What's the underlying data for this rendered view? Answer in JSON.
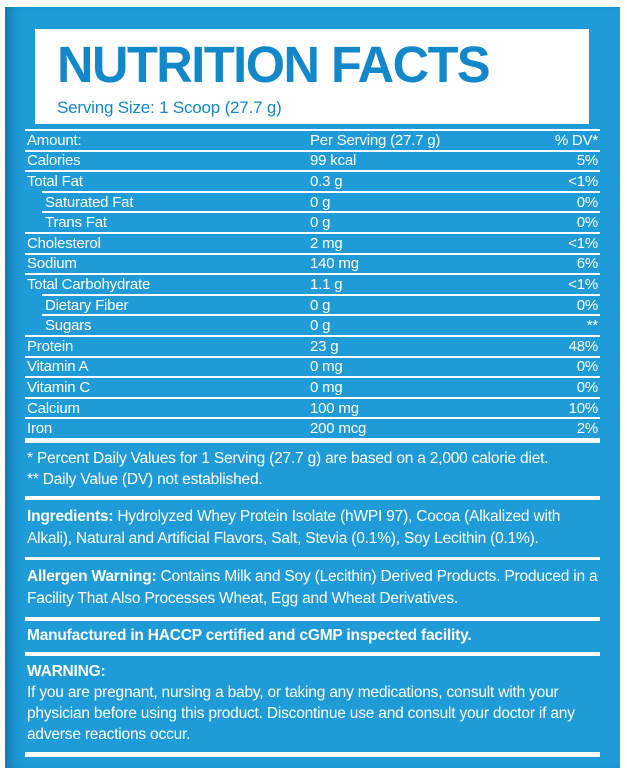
{
  "header": {
    "title": "NUTRITION FACTS",
    "serving_size": "Serving Size: 1 Scoop (27.7 g)"
  },
  "table": {
    "header_row": {
      "label": "Amount:",
      "value": "Per Serving (27.7 g)",
      "dv": "% DV*"
    },
    "rows": [
      {
        "label": "Calories",
        "value": "99 kcal",
        "dv": "5%",
        "indent": false
      },
      {
        "label": "Total Fat",
        "value": "0.3 g",
        "dv": "<1%",
        "indent": false
      },
      {
        "label": "Saturated Fat",
        "value": "0 g",
        "dv": "0%",
        "indent": true
      },
      {
        "label": "Trans Fat",
        "value": "0 g",
        "dv": "0%",
        "indent": true
      },
      {
        "label": "Cholesterol",
        "value": "2 mg",
        "dv": "<1%",
        "indent": false
      },
      {
        "label": "Sodium",
        "value": "140 mg",
        "dv": "6%",
        "indent": false
      },
      {
        "label": "Total Carbohydrate",
        "value": "1.1 g",
        "dv": "<1%",
        "indent": false
      },
      {
        "label": "Dietary Fiber",
        "value": "0 g",
        "dv": "0%",
        "indent": true
      },
      {
        "label": "Sugars",
        "value": "0 g",
        "dv": "**",
        "indent": true
      },
      {
        "label": "Protein",
        "value": "23 g",
        "dv": "48%",
        "indent": false
      },
      {
        "label": "Vitamin A",
        "value": "0 mg",
        "dv": "0%",
        "indent": false
      },
      {
        "label": "Vitamin C",
        "value": "0 mg",
        "dv": "0%",
        "indent": false
      },
      {
        "label": "Calcium",
        "value": "100 mg",
        "dv": "10%",
        "indent": false
      },
      {
        "label": "Iron",
        "value": "200 mcg",
        "dv": "2%",
        "indent": false
      }
    ]
  },
  "footnotes": [
    "* Percent Daily Values for 1 Serving (27.7 g) are based on a 2,000 calorie diet.",
    "** Daily Value (DV) not established."
  ],
  "ingredients": {
    "label": "Ingredients:",
    "text": "Hydrolyzed Whey Protein Isolate (hWPI 97), Cocoa (Alkalized with Alkali), Natural and Artificial Flavors, Salt, Stevia (0.1%), Soy Lecithin (0.1%)."
  },
  "allergen": {
    "label": "Allergen Warning:",
    "text": "Contains Milk and Soy (Lecithin) Derived Products. Produced in a Facility That Also Processes Wheat, Egg and Wheat Derivatives."
  },
  "manufactured": "Manufactured in HACCP certified and cGMP inspected facility.",
  "warning": {
    "label": "WARNING:",
    "text": "If you are pregnant, nursing a baby, or taking any medications, consult with your physician before using this product. Discontinue use and consult your doctor if any adverse reactions occur."
  },
  "colors": {
    "panel_blue": "#1F9CD8",
    "title_blue": "#1287C9",
    "text_white": "#FFFFFF"
  }
}
